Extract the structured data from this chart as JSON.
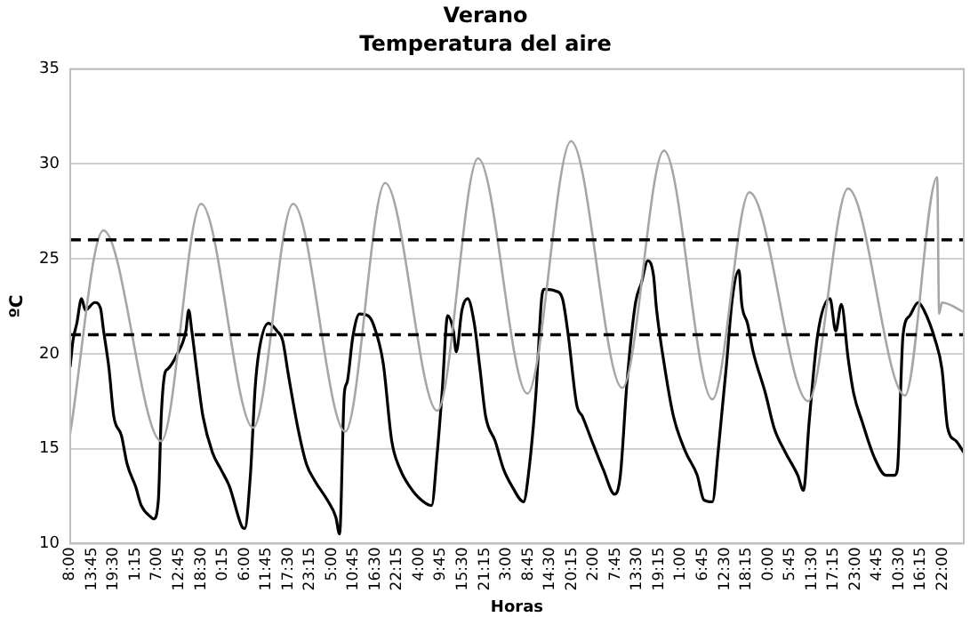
{
  "chart_data": {
    "type": "line",
    "title": "Verano",
    "subtitle": "Temperatura del aire",
    "xlabel": "Horas",
    "ylabel": "ºC",
    "xlim": [
      "2000-01-01T08:00",
      "2000-01-11T03:30"
    ],
    "ylim": [
      10,
      35
    ],
    "yticks": [
      10,
      15,
      20,
      25,
      30,
      35
    ],
    "xticks": [
      {
        "value": "2000-01-01T08:00",
        "label": "8:00"
      },
      {
        "value": "2000-01-01T13:45",
        "label": "13:45"
      },
      {
        "value": "2000-01-01T19:30",
        "label": "19:30"
      },
      {
        "value": "2000-01-02T01:15",
        "label": "1:15"
      },
      {
        "value": "2000-01-02T07:00",
        "label": "7:00"
      },
      {
        "value": "2000-01-02T12:45",
        "label": "12:45"
      },
      {
        "value": "2000-01-02T18:30",
        "label": "18:30"
      },
      {
        "value": "2000-01-03T00:15",
        "label": "0:15"
      },
      {
        "value": "2000-01-03T06:00",
        "label": "6:00"
      },
      {
        "value": "2000-01-03T11:45",
        "label": "11:45"
      },
      {
        "value": "2000-01-03T17:30",
        "label": "17:30"
      },
      {
        "value": "2000-01-03T23:15",
        "label": "23:15"
      },
      {
        "value": "2000-01-04T05:00",
        "label": "5:00"
      },
      {
        "value": "2000-01-04T10:45",
        "label": "10:45"
      },
      {
        "value": "2000-01-04T16:30",
        "label": "16:30"
      },
      {
        "value": "2000-01-04T22:15",
        "label": "22:15"
      },
      {
        "value": "2000-01-05T04:00",
        "label": "4:00"
      },
      {
        "value": "2000-01-05T09:45",
        "label": "9:45"
      },
      {
        "value": "2000-01-05T15:30",
        "label": "15:30"
      },
      {
        "value": "2000-01-05T21:15",
        "label": "21:15"
      },
      {
        "value": "2000-01-06T03:00",
        "label": "3:00"
      },
      {
        "value": "2000-01-06T08:45",
        "label": "8:45"
      },
      {
        "value": "2000-01-06T14:30",
        "label": "14:30"
      },
      {
        "value": "2000-01-06T20:15",
        "label": "20:15"
      },
      {
        "value": "2000-01-07T02:00",
        "label": "2:00"
      },
      {
        "value": "2000-01-07T07:45",
        "label": "7:45"
      },
      {
        "value": "2000-01-07T13:30",
        "label": "13:30"
      },
      {
        "value": "2000-01-07T19:15",
        "label": "19:15"
      },
      {
        "value": "2000-01-08T01:00",
        "label": "1:00"
      },
      {
        "value": "2000-01-08T06:45",
        "label": "6:45"
      },
      {
        "value": "2000-01-08T12:30",
        "label": "12:30"
      },
      {
        "value": "2000-01-08T18:15",
        "label": "18:15"
      },
      {
        "value": "2000-01-09T00:00",
        "label": "0:00"
      },
      {
        "value": "2000-01-09T05:45",
        "label": "5:45"
      },
      {
        "value": "2000-01-09T11:30",
        "label": "11:30"
      },
      {
        "value": "2000-01-09T17:15",
        "label": "17:15"
      },
      {
        "value": "2000-01-09T23:00",
        "label": "23:00"
      },
      {
        "value": "2000-01-10T04:45",
        "label": "4:45"
      },
      {
        "value": "2000-01-10T10:30",
        "label": "10:30"
      },
      {
        "value": "2000-01-10T16:15",
        "label": "16:15"
      },
      {
        "value": "2000-01-10T22:00",
        "label": "22:00"
      }
    ],
    "grid": "y",
    "marker": "none",
    "line_style": "solid",
    "ref_lines": [
      {
        "axis": "y",
        "value": 21,
        "color": "#000000",
        "line_style": "dashed"
      },
      {
        "axis": "y",
        "value": 26,
        "color": "#000000",
        "line_style": "dashed"
      }
    ],
    "series": [
      {
        "color": "#a6a6a6",
        "x": [
          "2000-01-01T08:00",
          "2000-01-01T16:45",
          "2000-01-02T08:00",
          "2000-01-02T18:30",
          "2000-01-03T08:15",
          "2000-01-03T18:45",
          "2000-01-04T08:30",
          "2000-01-04T19:00",
          "2000-01-05T08:45",
          "2000-01-05T19:30",
          "2000-01-06T08:30",
          "2000-01-06T20:00",
          "2000-01-07T09:30",
          "2000-01-07T20:30",
          "2000-01-08T09:15",
          "2000-01-08T19:00",
          "2000-01-09T10:30",
          "2000-01-09T21:00",
          "2000-01-10T12:00",
          "2000-01-10T20:30",
          "2000-01-10T21:00",
          "2000-01-10T21:45",
          "2000-01-11T03:30"
        ],
        "values": [
          15.8,
          26.5,
          15.4,
          27.9,
          16.1,
          27.9,
          15.9,
          29.0,
          17.0,
          30.3,
          17.9,
          31.2,
          18.2,
          30.7,
          17.6,
          28.5,
          17.5,
          28.7,
          17.8,
          29.3,
          22.1,
          22.7,
          22.2
        ]
      },
      {
        "color": "#000000",
        "x": [
          "2000-01-01T08:00",
          "2000-01-01T08:45",
          "2000-01-01T09:45",
          "2000-01-01T11:00",
          "2000-01-01T12:00",
          "2000-01-01T14:30",
          "2000-01-01T16:00",
          "2000-01-01T16:45",
          "2000-01-01T18:15",
          "2000-01-01T19:30",
          "2000-01-01T21:30",
          "2000-01-01T23:00",
          "2000-01-02T01:15",
          "2000-01-02T02:45",
          "2000-01-02T05:15",
          "2000-01-02T06:00",
          "2000-01-02T07:15",
          "2000-01-02T08:00",
          "2000-01-02T09:00",
          "2000-01-02T09:45",
          "2000-01-02T12:00",
          "2000-01-02T14:30",
          "2000-01-02T15:15",
          "2000-01-02T16:00",
          "2000-01-02T17:30",
          "2000-01-02T19:00",
          "2000-01-02T21:30",
          "2000-01-02T23:45",
          "2000-01-03T02:00",
          "2000-01-03T05:15",
          "2000-01-03T06:00",
          "2000-01-03T07:30",
          "2000-01-03T08:45",
          "2000-01-03T09:45",
          "2000-01-03T12:15",
          "2000-01-03T14:30",
          "2000-01-03T16:00",
          "2000-01-03T17:30",
          "2000-01-03T20:00",
          "2000-01-03T22:15",
          "2000-01-04T00:30",
          "2000-01-04T03:45",
          "2000-01-04T06:00",
          "2000-01-04T07:00",
          "2000-01-04T08:15",
          "2000-01-04T09:00",
          "2000-01-04T10:30",
          "2000-01-04T12:15",
          "2000-01-04T14:30",
          "2000-01-04T16:00",
          "2000-01-04T18:30",
          "2000-01-04T20:45",
          "2000-01-04T23:00",
          "2000-01-05T01:30",
          "2000-01-05T04:30",
          "2000-01-05T07:15",
          "2000-01-05T08:45",
          "2000-01-05T10:00",
          "2000-01-05T11:30",
          "2000-01-05T13:00",
          "2000-01-05T13:45",
          "2000-01-05T15:15",
          "2000-01-05T16:45",
          "2000-01-05T18:30",
          "2000-01-05T20:00",
          "2000-01-05T21:30",
          "2000-01-06T00:00",
          "2000-01-06T02:15",
          "2000-01-06T04:30",
          "2000-01-06T07:30",
          "2000-01-06T08:45",
          "2000-01-06T10:45",
          "2000-01-06T12:15",
          "2000-01-06T13:00",
          "2000-01-06T16:00",
          "2000-01-06T17:45",
          "2000-01-06T19:15",
          "2000-01-06T21:30",
          "2000-01-06T23:00",
          "2000-01-07T01:30",
          "2000-01-07T04:30",
          "2000-01-07T07:30",
          "2000-01-07T09:00",
          "2000-01-07T10:45",
          "2000-01-07T13:00",
          "2000-01-07T14:30",
          "2000-01-07T16:15",
          "2000-01-07T17:45",
          "2000-01-07T18:30",
          "2000-01-07T20:45",
          "2000-01-07T23:00",
          "2000-01-08T02:15",
          "2000-01-08T05:15",
          "2000-01-08T07:00",
          "2000-01-08T09:15",
          "2000-01-08T10:45",
          "2000-01-08T13:00",
          "2000-01-08T14:30",
          "2000-01-08T16:15",
          "2000-01-08T17:00",
          "2000-01-08T18:30",
          "2000-01-08T20:00",
          "2000-01-08T23:15",
          "2000-01-09T01:30",
          "2000-01-09T04:30",
          "2000-01-09T07:45",
          "2000-01-09T09:15",
          "2000-01-09T10:45",
          "2000-01-09T13:00",
          "2000-01-09T16:15",
          "2000-01-09T17:45",
          "2000-01-09T19:15",
          "2000-01-09T21:00",
          "2000-01-09T22:30",
          "2000-01-10T00:45",
          "2000-01-10T04:00",
          "2000-01-10T07:00",
          "2000-01-10T09:15",
          "2000-01-10T10:00",
          "2000-01-10T11:30",
          "2000-01-10T13:15",
          "2000-01-10T15:30",
          "2000-01-10T17:00",
          "2000-01-10T20:00",
          "2000-01-10T21:45",
          "2000-01-10T23:15",
          "2000-01-11T01:30",
          "2000-01-11T03:30"
        ],
        "values": [
          19.3,
          20.7,
          21.6,
          22.9,
          22.3,
          22.7,
          22.4,
          21.3,
          19.2,
          16.7,
          15.7,
          14.2,
          13.0,
          12.0,
          11.4,
          11.3,
          12.3,
          16.7,
          19.0,
          19.2,
          19.9,
          21.2,
          22.3,
          21.3,
          18.9,
          16.7,
          14.8,
          13.9,
          13.0,
          10.9,
          10.8,
          13.6,
          18.2,
          20.1,
          21.6,
          21.2,
          20.7,
          18.9,
          16.1,
          14.2,
          13.3,
          12.3,
          11.4,
          10.5,
          17.9,
          18.5,
          20.9,
          22.1,
          22.0,
          21.5,
          19.5,
          15.4,
          13.9,
          13.0,
          12.3,
          12.0,
          14.8,
          17.9,
          22.0,
          21.2,
          20.1,
          22.3,
          22.9,
          21.6,
          19.2,
          16.7,
          15.4,
          13.9,
          13.0,
          12.2,
          13.6,
          17.9,
          22.9,
          23.4,
          23.3,
          22.9,
          21.0,
          17.3,
          16.7,
          15.4,
          13.9,
          12.6,
          13.6,
          18.5,
          22.7,
          23.7,
          24.9,
          24.1,
          22.4,
          19.2,
          16.7,
          14.8,
          13.6,
          12.3,
          12.2,
          14.8,
          19.5,
          22.9,
          24.4,
          22.6,
          21.6,
          20.1,
          17.9,
          16.1,
          14.8,
          13.6,
          12.8,
          16.4,
          21.0,
          22.9,
          21.2,
          22.6,
          19.8,
          17.9,
          16.4,
          14.5,
          13.6,
          13.6,
          13.9,
          21.0,
          22.0,
          22.7,
          22.3,
          20.7,
          19.2,
          16.1,
          15.4,
          14.8
        ]
      }
    ]
  }
}
